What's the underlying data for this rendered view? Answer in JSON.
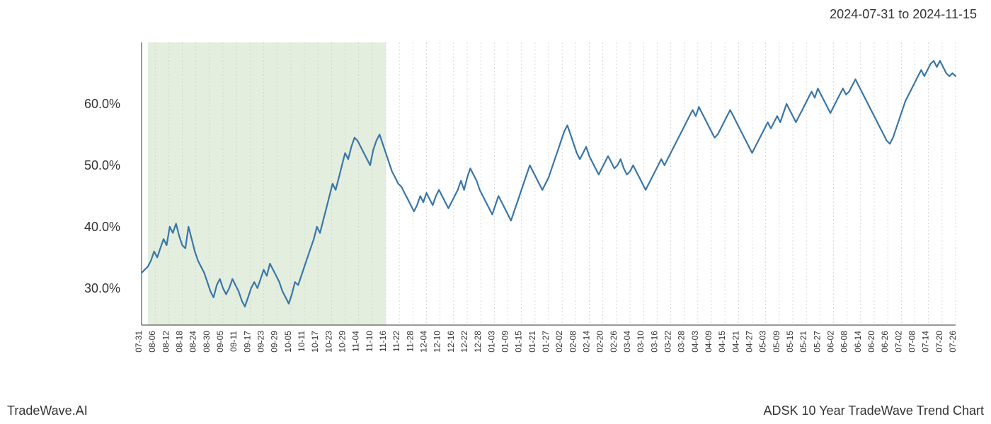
{
  "header": {
    "date_range": "2024-07-31 to 2024-11-15"
  },
  "footer": {
    "left": "TradeWave.AI",
    "right": "ADSK 10 Year TradeWave Trend Chart"
  },
  "chart": {
    "type": "line",
    "background_color": "#ffffff",
    "grid_color": "#d0d0d0",
    "grid_dash": "2,3",
    "line_color": "#3a76a8",
    "line_width": 2.2,
    "highlight_band": {
      "fill": "#d9e8d4",
      "opacity": 0.75,
      "x_start": "08-01",
      "x_end": "11-15"
    },
    "y_axis": {
      "label_fontsize": 18,
      "ticks": [
        30.0,
        40.0,
        50.0,
        60.0
      ],
      "tick_labels": [
        "30.0%",
        "40.0%",
        "50.0%",
        "60.0%"
      ],
      "min": 24,
      "max": 70
    },
    "x_axis": {
      "label_fontsize": 12,
      "rotation": 90,
      "ticks": [
        "07-31",
        "08-06",
        "08-12",
        "08-18",
        "08-24",
        "08-30",
        "09-05",
        "09-11",
        "09-17",
        "09-23",
        "09-29",
        "10-05",
        "10-11",
        "10-17",
        "10-23",
        "10-29",
        "11-04",
        "11-10",
        "11-16",
        "11-22",
        "11-28",
        "12-04",
        "12-10",
        "12-16",
        "12-22",
        "12-28",
        "01-03",
        "01-09",
        "01-15",
        "01-21",
        "01-27",
        "02-02",
        "02-08",
        "02-14",
        "02-20",
        "02-26",
        "03-04",
        "03-10",
        "03-16",
        "03-22",
        "03-28",
        "04-03",
        "04-09",
        "04-15",
        "04-21",
        "04-27",
        "05-03",
        "05-09",
        "05-15",
        "05-21",
        "05-27",
        "06-02",
        "06-08",
        "06-14",
        "06-20",
        "06-26",
        "07-02",
        "07-08",
        "07-14",
        "07-20",
        "07-26"
      ]
    },
    "series": [
      32.5,
      33.0,
      33.5,
      34.5,
      36.0,
      35.0,
      36.5,
      38.0,
      37.0,
      40.0,
      39.0,
      40.5,
      38.5,
      37.0,
      36.5,
      40.0,
      38.0,
      36.0,
      34.5,
      33.5,
      32.5,
      31.0,
      29.5,
      28.5,
      30.5,
      31.5,
      30.0,
      29.0,
      30.0,
      31.5,
      30.5,
      29.5,
      28.0,
      27.0,
      28.5,
      30.0,
      31.0,
      30.0,
      31.5,
      33.0,
      32.0,
      34.0,
      33.0,
      32.0,
      31.0,
      29.5,
      28.5,
      27.5,
      29.0,
      31.0,
      30.5,
      32.0,
      33.5,
      35.0,
      36.5,
      38.0,
      40.0,
      39.0,
      41.0,
      43.0,
      45.0,
      47.0,
      46.0,
      48.0,
      50.0,
      52.0,
      51.0,
      53.0,
      54.5,
      54.0,
      53.0,
      52.0,
      51.0,
      50.0,
      52.5,
      54.0,
      55.0,
      53.5,
      52.0,
      50.5,
      49.0,
      48.0,
      47.0,
      46.5,
      45.5,
      44.5,
      43.5,
      42.5,
      43.5,
      45.0,
      44.0,
      45.5,
      44.5,
      43.5,
      45.0,
      46.0,
      45.0,
      44.0,
      43.0,
      44.0,
      45.0,
      46.0,
      47.5,
      46.0,
      48.0,
      49.5,
      48.5,
      47.5,
      46.0,
      45.0,
      44.0,
      43.0,
      42.0,
      43.5,
      45.0,
      44.0,
      43.0,
      42.0,
      41.0,
      42.5,
      44.0,
      45.5,
      47.0,
      48.5,
      50.0,
      49.0,
      48.0,
      47.0,
      46.0,
      47.0,
      48.0,
      49.5,
      51.0,
      52.5,
      54.0,
      55.5,
      56.5,
      55.0,
      53.5,
      52.0,
      51.0,
      52.0,
      53.0,
      51.5,
      50.5,
      49.5,
      48.5,
      49.5,
      50.5,
      51.5,
      50.5,
      49.5,
      50.0,
      51.0,
      49.5,
      48.5,
      49.0,
      50.0,
      49.0,
      48.0,
      47.0,
      46.0,
      47.0,
      48.0,
      49.0,
      50.0,
      51.0,
      50.0,
      51.0,
      52.0,
      53.0,
      54.0,
      55.0,
      56.0,
      57.0,
      58.0,
      59.0,
      58.0,
      59.5,
      58.5,
      57.5,
      56.5,
      55.5,
      54.5,
      55.0,
      56.0,
      57.0,
      58.0,
      59.0,
      58.0,
      57.0,
      56.0,
      55.0,
      54.0,
      53.0,
      52.0,
      53.0,
      54.0,
      55.0,
      56.0,
      57.0,
      56.0,
      57.0,
      58.0,
      57.0,
      58.5,
      60.0,
      59.0,
      58.0,
      57.0,
      58.0,
      59.0,
      60.0,
      61.0,
      62.0,
      61.0,
      62.5,
      61.5,
      60.5,
      59.5,
      58.5,
      59.5,
      60.5,
      61.5,
      62.5,
      61.5,
      62.0,
      63.0,
      64.0,
      63.0,
      62.0,
      61.0,
      60.0,
      59.0,
      58.0,
      57.0,
      56.0,
      55.0,
      54.0,
      53.5,
      54.5,
      56.0,
      57.5,
      59.0,
      60.5,
      61.5,
      62.5,
      63.5,
      64.5,
      65.5,
      64.5,
      65.5,
      66.5,
      67.0,
      66.0,
      67.0,
      66.0,
      65.0,
      64.5,
      65.0,
      64.5
    ]
  }
}
